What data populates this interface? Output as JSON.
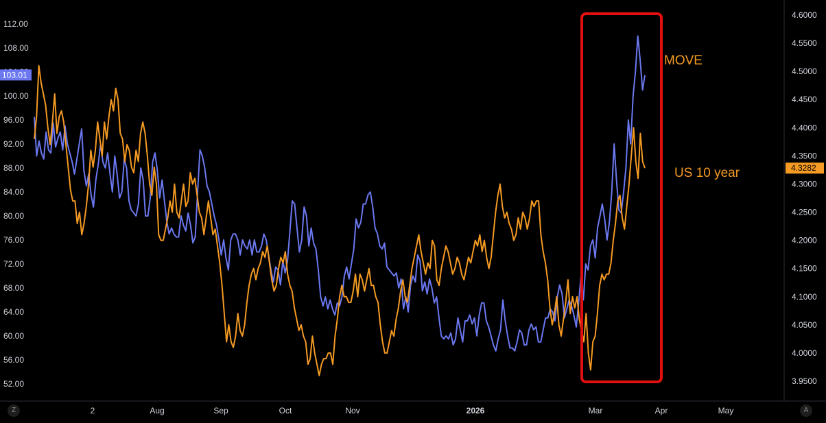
{
  "chart_data": {
    "type": "line",
    "title": "",
    "x_tick_labels": [
      "2",
      "Aug",
      "Sep",
      "Oct",
      "Nov",
      "2026",
      "Mar",
      "Apr",
      "May"
    ],
    "y_left": {
      "ticks": [
        112,
        108,
        104,
        100,
        96,
        92,
        88,
        84,
        80,
        76,
        72,
        68,
        64,
        60,
        56,
        52
      ],
      "tick_labels": [
        "112.00",
        "108.00",
        "104.00",
        "100.00",
        "96.00",
        "92.00",
        "88.00",
        "84.00",
        "80.00",
        "76.00",
        "72.00",
        "68.00",
        "64.00",
        "60.00",
        "56.00",
        "52.00"
      ],
      "range": [
        50.4,
        115.2
      ]
    },
    "y_right": {
      "ticks": [
        4.6,
        4.55,
        4.5,
        4.45,
        4.4,
        4.35,
        4.3,
        4.25,
        4.2,
        4.15,
        4.1,
        4.05,
        4.0,
        3.95
      ],
      "tick_labels": [
        "4.6000",
        "4.5500",
        "4.5000",
        "4.4500",
        "4.4000",
        "4.3500",
        "4.3000",
        "4.2500",
        "4.2000",
        "4.1500",
        "4.1000",
        "4.0500",
        "4.0000",
        "3.9500"
      ],
      "range": [
        3.925,
        4.635
      ]
    },
    "series": [
      {
        "name": "MOVE",
        "axis": "left",
        "color": "#6b78f0",
        "last_value_label": "103.01",
        "values": [
          96.5,
          90,
          92.5,
          90.5,
          89.5,
          94,
          91,
          90.5,
          95.5,
          91.5,
          93,
          94,
          91,
          95,
          92,
          90.5,
          89,
          87,
          89.5,
          92,
          94.5,
          87.5,
          85,
          87,
          83.5,
          81.5,
          86,
          88.5,
          92,
          89,
          88,
          90.5,
          87,
          84,
          90,
          87,
          83,
          84,
          89.5,
          88,
          82.5,
          81,
          80.5,
          80,
          82,
          88,
          86,
          80,
          80,
          83,
          89,
          90.5,
          87.5,
          83,
          86,
          82.5,
          79,
          77,
          78,
          77,
          76.5,
          76.5,
          80,
          78.5,
          77.5,
          80.5,
          78.5,
          75.5,
          76.5,
          84,
          91,
          90,
          88,
          85,
          84,
          82,
          80,
          78.5,
          76,
          73.5,
          76,
          73,
          71,
          76,
          77,
          77,
          76,
          73.5,
          76,
          75,
          74.5,
          76,
          73.5,
          76,
          74,
          74,
          75,
          77,
          76,
          73.5,
          71,
          69,
          71.5,
          71,
          68.5,
          72.5,
          70.5,
          72.5,
          77.5,
          82.5,
          82,
          78,
          74,
          76,
          81.5,
          80,
          75,
          78,
          75.5,
          74.5,
          71,
          66.5,
          65,
          66.5,
          64.5,
          66,
          64.5,
          63.5,
          65.5,
          65,
          66.5,
          70,
          71.5,
          69.5,
          72,
          74.5,
          79.5,
          78,
          79,
          82,
          82,
          83.5,
          84,
          81.5,
          78,
          77,
          75,
          74.5,
          75.5,
          71.5,
          71,
          70.5,
          70,
          70.5,
          68,
          69.5,
          64.5,
          66.5,
          64,
          68.5,
          70,
          69,
          73.5,
          72.5,
          67.5,
          69,
          67,
          69.5,
          68,
          65.5,
          66.5,
          63,
          60,
          59.5,
          60,
          59.5,
          60.5,
          58.5,
          59.5,
          63,
          61,
          59,
          62.5,
          62.5,
          63.5,
          62,
          63,
          60,
          63.5,
          65.5,
          65.5,
          62.5,
          61.5,
          60,
          58.5,
          57.5,
          59.5,
          61,
          66,
          62.5,
          60,
          58,
          58,
          57.5,
          59,
          61,
          60.5,
          58.5,
          58.5,
          61,
          62,
          61,
          61.5,
          59,
          59,
          61,
          63,
          63,
          64.5,
          64,
          62.5,
          66.5,
          68.5,
          67,
          63,
          64.5,
          66,
          65,
          63.5,
          61.5,
          65.5,
          70,
          66,
          72,
          71,
          75,
          76,
          73,
          78,
          80,
          82,
          79.5,
          76,
          79,
          84,
          92,
          86,
          81,
          80.5,
          84,
          88,
          96,
          92,
          100,
          104,
          110,
          106,
          101,
          103.5
        ],
        "note_end": "103.01"
      },
      {
        "name": "US 10 year",
        "axis": "right",
        "color": "#f59a23",
        "last_value_label": "4.3282",
        "values": [
          4.38,
          4.42,
          4.51,
          4.48,
          4.46,
          4.44,
          4.4,
          4.37,
          4.41,
          4.46,
          4.39,
          4.42,
          4.43,
          4.41,
          4.37,
          4.33,
          4.29,
          4.27,
          4.27,
          4.23,
          4.25,
          4.21,
          4.23,
          4.26,
          4.3,
          4.36,
          4.33,
          4.36,
          4.41,
          4.38,
          4.35,
          4.41,
          4.38,
          4.42,
          4.45,
          4.43,
          4.47,
          4.45,
          4.39,
          4.38,
          4.34,
          4.37,
          4.36,
          4.33,
          4.32,
          4.36,
          4.34,
          4.39,
          4.41,
          4.39,
          4.35,
          4.3,
          4.28,
          4.33,
          4.3,
          4.21,
          4.2,
          4.2,
          4.22,
          4.24,
          4.27,
          4.25,
          4.3,
          4.25,
          4.24,
          4.27,
          4.3,
          4.26,
          4.27,
          4.32,
          4.3,
          4.31,
          4.28,
          4.25,
          4.24,
          4.21,
          4.24,
          4.27,
          4.24,
          4.21,
          4.22,
          4.19,
          4.16,
          4.12,
          4.07,
          4.02,
          4.05,
          4.02,
          4.01,
          4.03,
          4.07,
          4.04,
          4.03,
          4.05,
          4.09,
          4.12,
          4.14,
          4.15,
          4.13,
          4.15,
          4.16,
          4.18,
          4.17,
          4.19,
          4.16,
          4.13,
          4.11,
          4.12,
          4.15,
          4.17,
          4.16,
          4.18,
          4.14,
          4.12,
          4.11,
          4.08,
          4.06,
          4.04,
          4.05,
          4.03,
          4.02,
          3.98,
          3.99,
          4.03,
          4.0,
          3.98,
          3.96,
          3.98,
          3.99,
          3.99,
          4.0,
          4.0,
          3.98,
          4.03,
          4.06,
          4.1,
          4.12,
          4.1,
          4.1,
          4.09,
          4.09,
          4.11,
          4.14,
          4.1,
          4.14,
          4.13,
          4.11,
          4.13,
          4.15,
          4.12,
          4.12,
          4.1,
          4.09,
          4.05,
          4.02,
          4.0,
          4.0,
          4.02,
          4.04,
          4.03,
          4.06,
          4.08,
          4.11,
          4.13,
          4.1,
          4.09,
          4.12,
          4.15,
          4.17,
          4.19,
          4.21,
          4.18,
          4.16,
          4.14,
          4.16,
          4.15,
          4.2,
          4.19,
          4.13,
          4.12,
          4.15,
          4.17,
          4.19,
          4.18,
          4.16,
          4.14,
          4.15,
          4.17,
          4.16,
          4.14,
          4.13,
          4.15,
          4.17,
          4.16,
          4.18,
          4.2,
          4.19,
          4.21,
          4.18,
          4.2,
          4.17,
          4.15,
          4.17,
          4.21,
          4.25,
          4.28,
          4.3,
          4.26,
          4.24,
          4.25,
          4.23,
          4.22,
          4.2,
          4.21,
          4.24,
          4.22,
          4.25,
          4.24,
          4.22,
          4.24,
          4.27,
          4.26,
          4.27,
          4.27,
          4.21,
          4.18,
          4.16,
          4.13,
          4.08,
          4.05,
          4.07,
          4.1,
          4.05,
          4.03,
          4.06,
          4.09,
          4.13,
          4.07,
          4.1,
          4.08,
          4.1,
          4.06,
          4.04,
          4.02,
          4.07,
          4.0,
          3.97,
          4.02,
          4.03,
          4.07,
          4.12,
          4.14,
          4.13,
          4.14,
          4.14,
          4.16,
          4.2,
          4.23,
          4.27,
          4.28,
          4.24,
          4.22,
          4.26,
          4.3,
          4.35,
          4.4,
          4.34,
          4.31,
          4.39,
          4.34,
          4.3283
        ]
      }
    ],
    "annotations": [
      {
        "text": "MOVE",
        "color": "#f59a23"
      },
      {
        "text": "US 10 year",
        "color": "#f59a23"
      }
    ],
    "highlight_box_color": "#e01010",
    "grid": false,
    "background": "#000000",
    "axis_text_color": "#d1d4dc",
    "corner_buttons": {
      "left": "Z",
      "right": "A"
    }
  }
}
